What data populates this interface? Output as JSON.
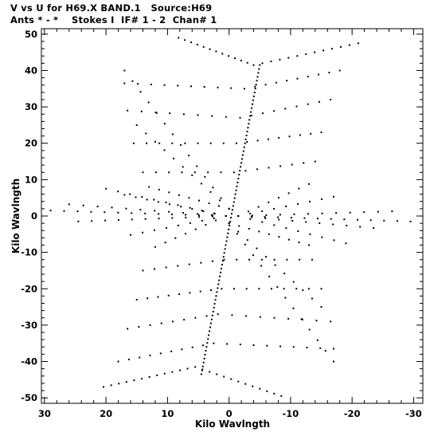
{
  "header": {
    "line1": "V vs U for H69.X BAND.1   Source:H69",
    "line2": "Ants * - *    Stokes I  IF# 1 - 2  Chan# 1"
  },
  "chart_data": {
    "type": "scatter",
    "title": "V vs U for H69.X BAND.1   Source:H69",
    "subtitle": "Ants * - *    Stokes I  IF# 1 - 2  Chan# 1",
    "xlabel": "Kilo Wavlngth",
    "ylabel": "Kilo Wavlngth",
    "xlim": [
      30.5,
      -31.5
    ],
    "ylim": [
      -51.5,
      51.5
    ],
    "x_ticks": [
      30,
      20,
      10,
      0,
      -10,
      -20,
      -30
    ],
    "x_tick_labels": [
      "30",
      "20",
      "10",
      "0",
      "-10",
      "-20",
      "-30"
    ],
    "y_ticks": [
      50,
      40,
      30,
      20,
      10,
      0,
      -10,
      -20,
      -30,
      -40,
      -50
    ],
    "y_tick_labels": [
      "50",
      "40",
      "30",
      "20",
      "10",
      "0",
      "-10",
      "-20",
      "-30",
      "-40",
      "-50"
    ],
    "grid": false,
    "marker_color": "#000000",
    "tracks": {
      "central_line": {
        "from": [
          -5,
          41.5
        ],
        "to": [
          4.5,
          -43.5
        ],
        "points": 80
      },
      "upper_v": {
        "apex": [
          -4,
          41.5
        ],
        "left_end": [
          8.2,
          49
        ],
        "right_end": [
          -21,
          47.5
        ],
        "points": 26
      },
      "lower_v": {
        "apex": [
          5.5,
          -41.5
        ],
        "left_end": [
          20.4,
          -47
        ],
        "right_end": [
          -8.5,
          -49.5
        ],
        "points": 26
      },
      "horizontal_arms": [
        {
          "start": [
            0.5,
            0
          ],
          "end": [
            29,
            1.5
          ],
          "points": 14
        },
        {
          "start": [
            0.5,
            0
          ],
          "end": [
            26,
            3.2
          ],
          "points": 12
        },
        {
          "start": [
            0.5,
            0
          ],
          "end": [
            24.5,
            -1.5
          ],
          "points": 12
        },
        {
          "start": [
            0.5,
            0
          ],
          "end": [
            20,
            7.5
          ],
          "points": 11
        },
        {
          "start": [
            0.5,
            0
          ],
          "end": [
            17,
            5.8
          ],
          "points": 10
        },
        {
          "start": [
            0.5,
            0
          ],
          "end": [
            16,
            -5.2
          ],
          "points": 9
        },
        {
          "start": [
            0.5,
            0
          ],
          "end": [
            12,
            -8.5
          ],
          "points": 8
        },
        {
          "start": [
            -1.5,
            0
          ],
          "end": [
            -29.5,
            -1.5
          ],
          "points": 14
        },
        {
          "start": [
            -1.5,
            0
          ],
          "end": [
            -26.5,
            1.3
          ],
          "points": 12
        },
        {
          "start": [
            -1.5,
            0
          ],
          "end": [
            -23.5,
            -3.3
          ],
          "points": 11
        },
        {
          "start": [
            -1.5,
            0
          ],
          "end": [
            -19,
            -7.5
          ],
          "points": 10
        },
        {
          "start": [
            -1.5,
            0
          ],
          "end": [
            -17,
            5.3
          ],
          "points": 9
        },
        {
          "start": [
            -1.5,
            0
          ],
          "end": [
            -13,
            8.8
          ],
          "points": 8
        }
      ],
      "diagonal_arms": [
        {
          "start": [
            0,
            2
          ],
          "end": [
            17,
            40
          ],
          "points": 14
        },
        {
          "start": [
            0,
            2
          ],
          "end": [
            15,
            25
          ],
          "points": 11
        },
        {
          "start": [
            0,
            2
          ],
          "end": [
            13,
            8
          ],
          "points": 9
        },
        {
          "start": [
            0,
            -2
          ],
          "end": [
            -17,
            -40
          ],
          "points": 14
        },
        {
          "start": [
            0,
            -2
          ],
          "end": [
            -15,
            -25
          ],
          "points": 11
        },
        {
          "start": [
            0,
            -2
          ],
          "end": [
            -13,
            -8
          ],
          "points": 9
        }
      ],
      "chevron_rows": [
        {
          "apex": [
            -2.5,
            35
          ],
          "left_end": [
            17,
            36.5
          ],
          "right_end": [
            -18,
            40
          ],
          "points": 20
        },
        {
          "apex": [
            -1.8,
            27
          ],
          "left_end": [
            16.5,
            29
          ],
          "right_end": [
            -16.5,
            32
          ],
          "points": 18
        },
        {
          "apex": [
            -1.2,
            20
          ],
          "left_end": [
            15.5,
            20
          ],
          "right_end": [
            -15,
            23
          ],
          "points": 17
        },
        {
          "apex": [
            -0.8,
            12
          ],
          "left_end": [
            14,
            12
          ],
          "right_end": [
            -14,
            15
          ],
          "points": 15
        },
        {
          "apex": [
            0.8,
            -12
          ],
          "left_end": [
            14,
            -15
          ],
          "right_end": [
            -13.5,
            -12
          ],
          "points": 15
        },
        {
          "apex": [
            1.2,
            -20
          ],
          "left_end": [
            15,
            -23
          ],
          "right_end": [
            -15,
            -20
          ],
          "points": 17
        },
        {
          "apex": [
            1.8,
            -27
          ],
          "left_end": [
            16.5,
            -31
          ],
          "right_end": [
            -16.5,
            -29
          ],
          "points": 18
        },
        {
          "apex": [
            2.5,
            -35
          ],
          "left_end": [
            18,
            -40
          ],
          "right_end": [
            -17,
            -36.5
          ],
          "points": 20
        }
      ]
    }
  }
}
